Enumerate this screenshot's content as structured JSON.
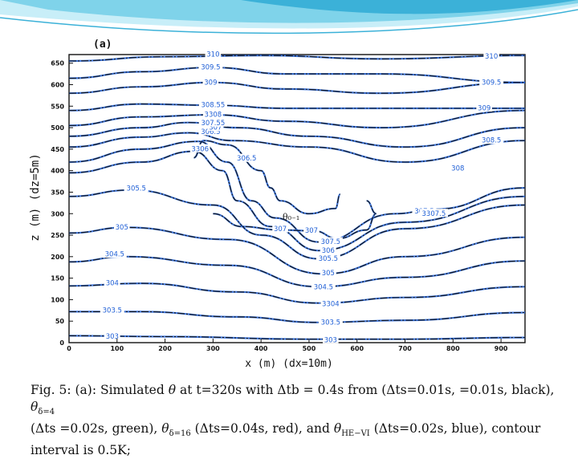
{
  "slide": {
    "panel_label": "(a)",
    "accent_colors": [
      "#7fd3ea",
      "#3bb1d8",
      "#c8eef8"
    ]
  },
  "chart_data": {
    "type": "contour",
    "xlabel": "x (m) (dx=10m)",
    "ylabel": "z (m) (dz=5m)",
    "xlim": [
      0,
      950
    ],
    "ylim": [
      0,
      670
    ],
    "x_ticks": [
      0,
      100,
      200,
      300,
      400,
      500,
      600,
      700,
      800,
      900
    ],
    "y_ticks": [
      0,
      50,
      100,
      150,
      200,
      250,
      300,
      350,
      400,
      450,
      500,
      550,
      600,
      650
    ],
    "interior_symbol": "θ₀₋₁",
    "series": [
      {
        "name": "θ (Δts=0.01s, =0.01s)",
        "color": "#111111"
      },
      {
        "name": "θδ=4 (Δts=0.02s)",
        "color": "#2ca02c"
      },
      {
        "name": "θδ=16 (Δts=0.04s)",
        "color": "#d62728"
      },
      {
        "name": "θHE-VI (Δts=0.02s)",
        "color": "#1f5fd6"
      }
    ],
    "contour_interval": 0.5,
    "contour_labels": [
      {
        "text": "303",
        "x": 90,
        "z": 14
      },
      {
        "text": "303",
        "x": 545,
        "z": 6
      },
      {
        "text": "303.5",
        "x": 90,
        "z": 75
      },
      {
        "text": "303.5",
        "x": 545,
        "z": 47
      },
      {
        "text": "304",
        "x": 90,
        "z": 138
      },
      {
        "text": "3304",
        "x": 545,
        "z": 90
      },
      {
        "text": "304.5",
        "x": 95,
        "z": 205
      },
      {
        "text": "304.5",
        "x": 530,
        "z": 129
      },
      {
        "text": "305",
        "x": 110,
        "z": 268
      },
      {
        "text": "305",
        "x": 540,
        "z": 161
      },
      {
        "text": "305.5",
        "x": 140,
        "z": 358
      },
      {
        "text": "305.5",
        "x": 540,
        "z": 195
      },
      {
        "text": "306.5",
        "x": 370,
        "z": 428
      },
      {
        "text": "306",
        "x": 540,
        "z": 214
      },
      {
        "text": "307",
        "x": 440,
        "z": 264
      },
      {
        "text": "307",
        "x": 505,
        "z": 260
      },
      {
        "text": "307.5",
        "x": 545,
        "z": 234
      },
      {
        "text": "3306",
        "x": 273,
        "z": 450
      },
      {
        "text": "306.5",
        "x": 295,
        "z": 490
      },
      {
        "text": "307",
        "x": 305,
        "z": 500
      },
      {
        "text": "307.55",
        "x": 300,
        "z": 510
      },
      {
        "text": "3308",
        "x": 300,
        "z": 530
      },
      {
        "text": "308.55",
        "x": 300,
        "z": 552
      },
      {
        "text": "309",
        "x": 295,
        "z": 605
      },
      {
        "text": "309.5",
        "x": 295,
        "z": 640
      },
      {
        "text": "310",
        "x": 300,
        "z": 670
      },
      {
        "text": "308.5",
        "x": 880,
        "z": 470
      },
      {
        "text": "308",
        "x": 810,
        "z": 405
      },
      {
        "text": "309",
        "x": 865,
        "z": 545
      },
      {
        "text": "309.5",
        "x": 880,
        "z": 605
      },
      {
        "text": "310",
        "x": 880,
        "z": 665
      },
      {
        "text": "307.5",
        "x": 740,
        "z": 305
      },
      {
        "text": "3307.5",
        "x": 760,
        "z": 300
      }
    ]
  },
  "caption": {
    "line1_a": "Fig. 5: (a): Simulated ",
    "theta": "θ",
    "line1_b": " at t=320s with Δtb = 0.4s from (Δts=0.01s, =0.01s, black), ",
    "sub_d4": "δ=4",
    "line2_a": "(Δts =0.02s, green), ",
    "sub_d16": "δ=16",
    "line2_b": " (Δts=0.04s, red), and ",
    "sub_hevi": "HE−VI",
    "line2_c": " (Δts=0.02s, blue), contour",
    "line3": "interval is 0.5K;"
  }
}
